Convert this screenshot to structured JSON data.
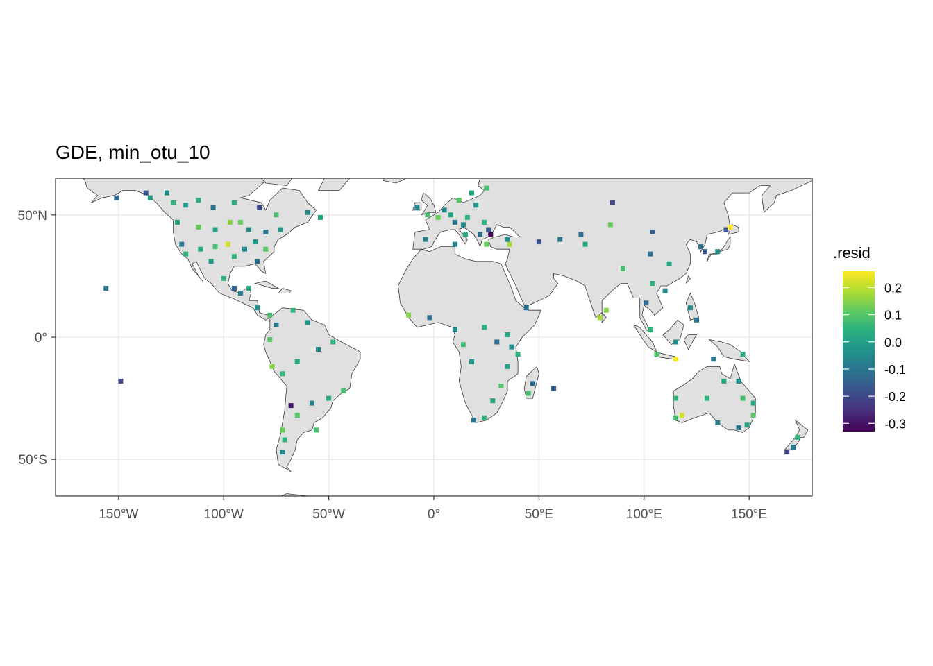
{
  "title": "GDE, min_otu_10",
  "chart_data": {
    "type": "scatter",
    "subtype": "world-map-points",
    "title": "GDE, min_otu_10",
    "x_axis": {
      "range": [
        -180,
        180
      ],
      "ticks": [
        -150,
        -100,
        -50,
        0,
        50,
        100,
        150
      ],
      "tick_labels": [
        "150°W",
        "100°W",
        "50°W",
        "0°",
        "50°E",
        "100°E",
        "150°E"
      ]
    },
    "y_axis": {
      "range": [
        -65,
        65
      ],
      "ticks": [
        -50,
        0,
        50
      ],
      "tick_labels": [
        "50°S",
        "0°",
        "50°N"
      ]
    },
    "grid": true,
    "land_color": "#e0e0e0",
    "legend": {
      "title": ".resid",
      "placement": "right",
      "colormap": "viridis",
      "range": [
        -0.33,
        0.26
      ],
      "ticks": [
        0.2,
        0.1,
        0.0,
        -0.1,
        -0.2,
        -0.3
      ],
      "tick_labels": [
        "0.2",
        "0.1",
        "0.0",
        "-0.1",
        "-0.2",
        "-0.3"
      ]
    },
    "points": [
      {
        "lon": -151,
        "lat": 57,
        "resid": -0.12
      },
      {
        "lon": -137,
        "lat": 59,
        "resid": -0.18
      },
      {
        "lon": -135,
        "lat": 57,
        "resid": 0.0
      },
      {
        "lon": -127,
        "lat": 59,
        "resid": -0.05
      },
      {
        "lon": -124,
        "lat": 55,
        "resid": 0.05
      },
      {
        "lon": -118,
        "lat": 54,
        "resid": -0.02
      },
      {
        "lon": -112,
        "lat": 56,
        "resid": 0.05
      },
      {
        "lon": -105,
        "lat": 53,
        "resid": -0.1
      },
      {
        "lon": -95,
        "lat": 55,
        "resid": 0.03
      },
      {
        "lon": -83,
        "lat": 53,
        "resid": -0.2
      },
      {
        "lon": -75,
        "lat": 50,
        "resid": 0.08
      },
      {
        "lon": -60,
        "lat": 51,
        "resid": -0.05
      },
      {
        "lon": -54,
        "lat": 49,
        "resid": 0.02
      },
      {
        "lon": -122,
        "lat": 47,
        "resid": 0.0
      },
      {
        "lon": -112,
        "lat": 45,
        "resid": 0.12
      },
      {
        "lon": -104,
        "lat": 44,
        "resid": 0.02
      },
      {
        "lon": -97,
        "lat": 47,
        "resid": 0.15
      },
      {
        "lon": -92,
        "lat": 47,
        "resid": 0.12
      },
      {
        "lon": -88,
        "lat": 44,
        "resid": -0.05
      },
      {
        "lon": -80,
        "lat": 43,
        "resid": -0.1
      },
      {
        "lon": -73,
        "lat": 44,
        "resid": -0.02
      },
      {
        "lon": -120,
        "lat": 38,
        "resid": -0.08
      },
      {
        "lon": -118,
        "lat": 34,
        "resid": 0.05
      },
      {
        "lon": -111,
        "lat": 36,
        "resid": 0.02
      },
      {
        "lon": -104,
        "lat": 37,
        "resid": 0.08
      },
      {
        "lon": -98,
        "lat": 38,
        "resid": 0.22
      },
      {
        "lon": -95,
        "lat": 33,
        "resid": 0.05
      },
      {
        "lon": -90,
        "lat": 36,
        "resid": -0.05
      },
      {
        "lon": -85,
        "lat": 39,
        "resid": -0.02
      },
      {
        "lon": -80,
        "lat": 36,
        "resid": 0.1
      },
      {
        "lon": -84,
        "lat": 31,
        "resid": -0.12
      },
      {
        "lon": -106,
        "lat": 31,
        "resid": -0.02
      },
      {
        "lon": -100,
        "lat": 24,
        "resid": 0.05
      },
      {
        "lon": -95,
        "lat": 20,
        "resid": -0.15
      },
      {
        "lon": -92,
        "lat": 18,
        "resid": -0.08
      },
      {
        "lon": -88,
        "lat": 20,
        "resid": 0.02
      },
      {
        "lon": -84,
        "lat": 12,
        "resid": -0.05
      },
      {
        "lon": -78,
        "lat": 9,
        "resid": 0.08
      },
      {
        "lon": -75,
        "lat": 5,
        "resid": -0.1
      },
      {
        "lon": -67,
        "lat": 11,
        "resid": 0.05
      },
      {
        "lon": -60,
        "lat": 6,
        "resid": -0.02
      },
      {
        "lon": -78,
        "lat": -1,
        "resid": 0.1
      },
      {
        "lon": -77,
        "lat": -12,
        "resid": 0.15
      },
      {
        "lon": -72,
        "lat": -15,
        "resid": 0.05
      },
      {
        "lon": -65,
        "lat": -10,
        "resid": 0.02
      },
      {
        "lon": -55,
        "lat": -5,
        "resid": -0.05
      },
      {
        "lon": -48,
        "lat": -2,
        "resid": 0.05
      },
      {
        "lon": -43,
        "lat": -22,
        "resid": 0.08
      },
      {
        "lon": -50,
        "lat": -25,
        "resid": 0.02
      },
      {
        "lon": -58,
        "lat": -27,
        "resid": -0.08
      },
      {
        "lon": -68,
        "lat": -28,
        "resid": -0.3
      },
      {
        "lon": -65,
        "lat": -32,
        "resid": 0.1
      },
      {
        "lon": -72,
        "lat": -38,
        "resid": 0.12
      },
      {
        "lon": -71,
        "lat": -42,
        "resid": 0.05
      },
      {
        "lon": -72,
        "lat": -47,
        "resid": -0.05
      },
      {
        "lon": -56,
        "lat": -38,
        "resid": 0.08
      },
      {
        "lon": -156,
        "lat": 20,
        "resid": -0.1
      },
      {
        "lon": -149,
        "lat": -18,
        "resid": -0.2
      },
      {
        "lon": -8,
        "lat": 53,
        "resid": -0.05
      },
      {
        "lon": -3,
        "lat": 50,
        "resid": 0.08
      },
      {
        "lon": 2,
        "lat": 49,
        "resid": 0.12
      },
      {
        "lon": 5,
        "lat": 52,
        "resid": -0.05
      },
      {
        "lon": 8,
        "lat": 50,
        "resid": 0.02
      },
      {
        "lon": 10,
        "lat": 47,
        "resid": -0.1
      },
      {
        "lon": 14,
        "lat": 46,
        "resid": -0.05
      },
      {
        "lon": 16,
        "lat": 49,
        "resid": 0.05
      },
      {
        "lon": 12,
        "lat": 56,
        "resid": 0.1
      },
      {
        "lon": 18,
        "lat": 59,
        "resid": 0.02
      },
      {
        "lon": 25,
        "lat": 61,
        "resid": 0.08
      },
      {
        "lon": 20,
        "lat": 54,
        "resid": -0.02
      },
      {
        "lon": 24,
        "lat": 47,
        "resid": 0.05
      },
      {
        "lon": 26,
        "lat": 44,
        "resid": -0.15
      },
      {
        "lon": 27,
        "lat": 42,
        "resid": -0.33
      },
      {
        "lon": 22,
        "lat": 42,
        "resid": -0.12
      },
      {
        "lon": 15,
        "lat": 42,
        "resid": 0.02
      },
      {
        "lon": -4,
        "lat": 40,
        "resid": -0.08
      },
      {
        "lon": 10,
        "lat": 38,
        "resid": -0.05
      },
      {
        "lon": 25,
        "lat": 38,
        "resid": 0.12
      },
      {
        "lon": 36,
        "lat": 38,
        "resid": 0.18
      },
      {
        "lon": 35,
        "lat": 40,
        "resid": -0.05
      },
      {
        "lon": 50,
        "lat": 39,
        "resid": -0.18
      },
      {
        "lon": 60,
        "lat": 40,
        "resid": -0.1
      },
      {
        "lon": 70,
        "lat": 42,
        "resid": -0.12
      },
      {
        "lon": 72,
        "lat": 38,
        "resid": 0.02
      },
      {
        "lon": 85,
        "lat": 55,
        "resid": -0.2
      },
      {
        "lon": 84,
        "lat": 46,
        "resid": 0.12
      },
      {
        "lon": 104,
        "lat": 43,
        "resid": -0.15
      },
      {
        "lon": 90,
        "lat": 28,
        "resid": 0.08
      },
      {
        "lon": 82,
        "lat": 11,
        "resid": 0.15
      },
      {
        "lon": 79,
        "lat": 8,
        "resid": 0.18
      },
      {
        "lon": 103,
        "lat": 34,
        "resid": -0.1
      },
      {
        "lon": 112,
        "lat": 30,
        "resid": 0.02
      },
      {
        "lon": 104,
        "lat": 22,
        "resid": 0.05
      },
      {
        "lon": 110,
        "lat": 19,
        "resid": -0.05
      },
      {
        "lon": 101,
        "lat": 14,
        "resid": -0.12
      },
      {
        "lon": 103,
        "lat": 3,
        "resid": 0.05
      },
      {
        "lon": 115,
        "lat": -2,
        "resid": -0.05
      },
      {
        "lon": 106,
        "lat": -7,
        "resid": 0.1
      },
      {
        "lon": 115,
        "lat": -9,
        "resid": 0.25
      },
      {
        "lon": 122,
        "lat": 12,
        "resid": -0.05
      },
      {
        "lon": 125,
        "lat": 7,
        "resid": -0.1
      },
      {
        "lon": 127,
        "lat": 37,
        "resid": -0.12
      },
      {
        "lon": 129,
        "lat": 35,
        "resid": -0.18
      },
      {
        "lon": 135,
        "lat": 35,
        "resid": -0.05
      },
      {
        "lon": 139,
        "lat": 44,
        "resid": -0.18
      },
      {
        "lon": 141,
        "lat": 45,
        "resid": 0.26
      },
      {
        "lon": 133,
        "lat": -9,
        "resid": -0.1
      },
      {
        "lon": 147,
        "lat": -7,
        "resid": 0.05
      },
      {
        "lon": 138,
        "lat": -18,
        "resid": 0.02
      },
      {
        "lon": 145,
        "lat": -18,
        "resid": -0.05
      },
      {
        "lon": 147,
        "lat": -25,
        "resid": 0.08
      },
      {
        "lon": 152,
        "lat": -27,
        "resid": 0.02
      },
      {
        "lon": 115,
        "lat": -25,
        "resid": 0.05
      },
      {
        "lon": 115,
        "lat": -33,
        "resid": 0.08
      },
      {
        "lon": 118,
        "lat": -32,
        "resid": 0.22
      },
      {
        "lon": 130,
        "lat": -25,
        "resid": 0.05
      },
      {
        "lon": 135,
        "lat": -35,
        "resid": -0.08
      },
      {
        "lon": 145,
        "lat": -37,
        "resid": -0.1
      },
      {
        "lon": 149,
        "lat": -36,
        "resid": 0.02
      },
      {
        "lon": 152,
        "lat": -32,
        "resid": 0.1
      },
      {
        "lon": 173,
        "lat": -41,
        "resid": 0.05
      },
      {
        "lon": 171,
        "lat": -45,
        "resid": -0.1
      },
      {
        "lon": 168,
        "lat": -47,
        "resid": -0.2
      },
      {
        "lon": -12,
        "lat": 9,
        "resid": 0.15
      },
      {
        "lon": -2,
        "lat": 8,
        "resid": -0.1
      },
      {
        "lon": 10,
        "lat": 3,
        "resid": -0.05
      },
      {
        "lon": 14,
        "lat": -3,
        "resid": 0.08
      },
      {
        "lon": 18,
        "lat": -10,
        "resid": -0.02
      },
      {
        "lon": 24,
        "lat": 4,
        "resid": 0.05
      },
      {
        "lon": 30,
        "lat": -2,
        "resid": -0.12
      },
      {
        "lon": 35,
        "lat": 1,
        "resid": 0.02
      },
      {
        "lon": 37,
        "lat": -4,
        "resid": -0.05
      },
      {
        "lon": 40,
        "lat": -7,
        "resid": 0.05
      },
      {
        "lon": 35,
        "lat": -12,
        "resid": 0.0
      },
      {
        "lon": 32,
        "lat": -20,
        "resid": 0.1
      },
      {
        "lon": 28,
        "lat": -26,
        "resid": 0.02
      },
      {
        "lon": 19,
        "lat": -34,
        "resid": -0.1
      },
      {
        "lon": 24,
        "lat": -33,
        "resid": 0.05
      },
      {
        "lon": 47,
        "lat": -19,
        "resid": -0.12
      },
      {
        "lon": 45,
        "lat": -23,
        "resid": 0.08
      },
      {
        "lon": 57,
        "lat": -21,
        "resid": -0.15
      },
      {
        "lon": 44,
        "lat": 12,
        "resid": -0.1
      }
    ]
  }
}
